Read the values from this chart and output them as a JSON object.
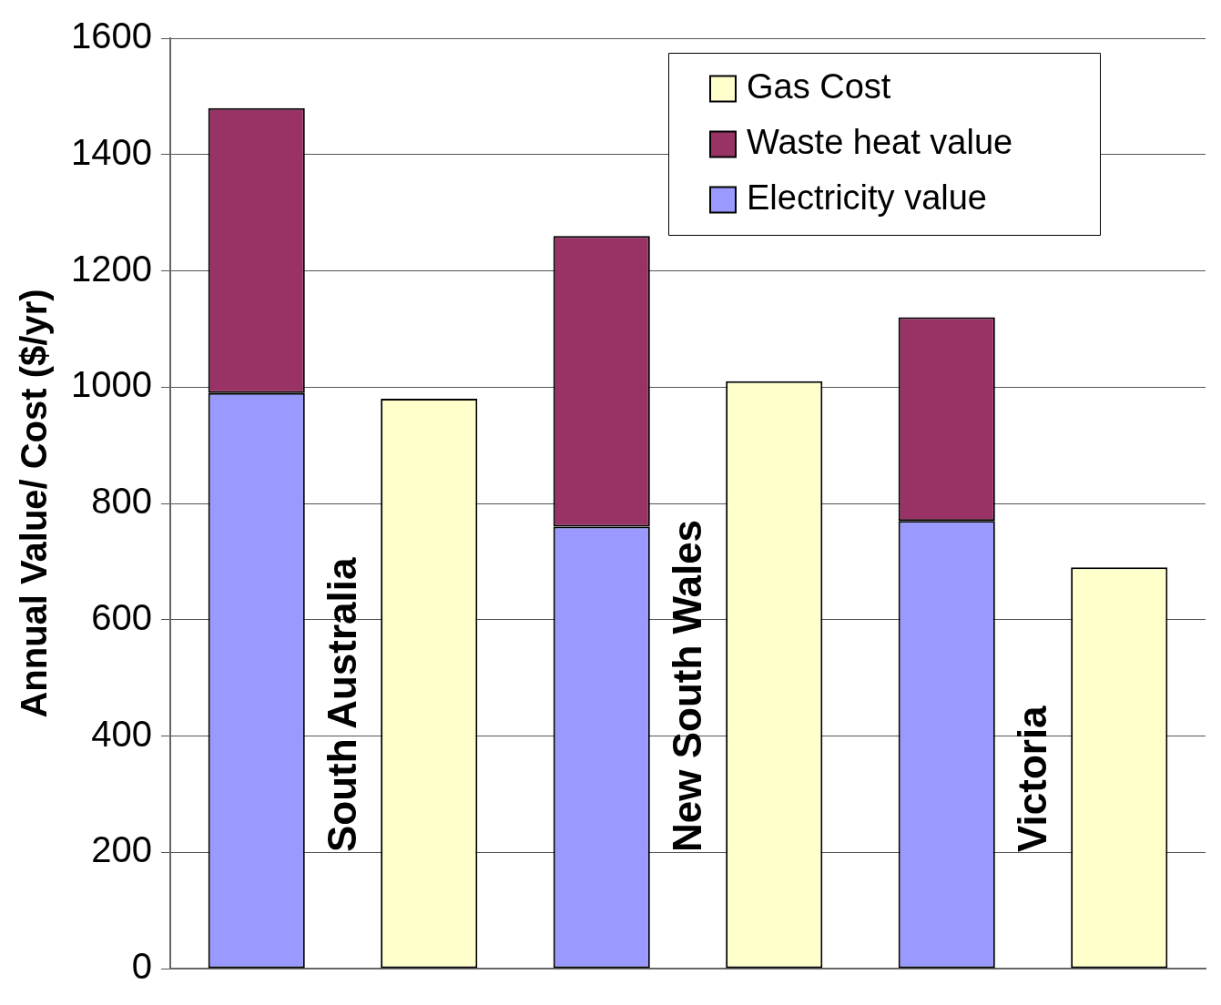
{
  "chart_data": {
    "type": "bar",
    "ylabel": "Annual Value/ Cost ($/yr)",
    "categories": [
      "South Australia",
      null,
      "New South Wales",
      null,
      "Victoria",
      null
    ],
    "stacked": true,
    "series": [
      {
        "name": "Electricity value",
        "color": "#9999ff",
        "values": [
          990,
          null,
          760,
          null,
          770,
          null
        ]
      },
      {
        "name": "Waste heat value",
        "color": "#993366",
        "values": [
          490,
          null,
          500,
          null,
          350,
          null
        ]
      },
      {
        "name": "Gas Cost",
        "color": "#ffffcc",
        "values": [
          null,
          980,
          null,
          1010,
          null,
          690
        ]
      }
    ],
    "ylim": [
      0,
      1600
    ],
    "yticks": [
      0,
      200,
      400,
      600,
      800,
      1000,
      1200,
      1400,
      1600
    ],
    "grid": "y",
    "legend": "top right"
  }
}
